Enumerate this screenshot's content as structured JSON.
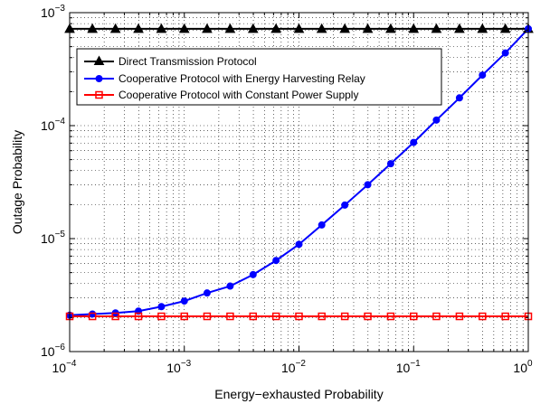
{
  "chart_data": {
    "type": "line",
    "xlabel": "Energy−exhausted Probability",
    "ylabel": "Outage Probability",
    "x_scale": "log",
    "y_scale": "log",
    "xlim": [
      0.0001,
      1
    ],
    "ylim": [
      1e-06,
      0.001
    ],
    "x_ticks": [
      {
        "base": "10",
        "exp": "−4"
      },
      {
        "base": "10",
        "exp": "−3"
      },
      {
        "base": "10",
        "exp": "−2"
      },
      {
        "base": "10",
        "exp": "−1"
      },
      {
        "base": "10",
        "exp": "0"
      }
    ],
    "y_ticks": [
      {
        "base": "10",
        "exp": "−6"
      },
      {
        "base": "10",
        "exp": "−5"
      },
      {
        "base": "10",
        "exp": "−4"
      },
      {
        "base": "10",
        "exp": "−3"
      }
    ],
    "grid": true,
    "legend_position": "top-left",
    "x": [
      0.0001,
      0.000158,
      0.000251,
      0.000398,
      0.000631,
      0.001,
      0.00158,
      0.00251,
      0.00398,
      0.00631,
      0.01,
      0.0158,
      0.0251,
      0.0398,
      0.0631,
      0.1,
      0.158,
      0.251,
      0.398,
      0.631,
      1.0
    ],
    "series": [
      {
        "name": "Direct Transmission Protocol",
        "color": "#000000",
        "marker": "triangle",
        "values": [
          0.00072,
          0.00072,
          0.00072,
          0.00072,
          0.00072,
          0.00072,
          0.00072,
          0.00072,
          0.00072,
          0.00072,
          0.00072,
          0.00072,
          0.00072,
          0.00072,
          0.00072,
          0.00072,
          0.00072,
          0.00072,
          0.00072,
          0.00072,
          0.00072
        ]
      },
      {
        "name": "Cooperative Protocol with Energy Harvesting Relay",
        "color": "#0000ff",
        "marker": "circle",
        "values": [
          2.1e-06,
          2.15e-06,
          2.2e-06,
          2.28e-06,
          2.5e-06,
          2.8e-06,
          3.3e-06,
          3.8e-06,
          4.8e-06,
          6.4e-06,
          8.9e-06,
          1.32e-05,
          1.98e-05,
          3e-05,
          4.6e-05,
          7.1e-05,
          0.000112,
          0.000176,
          0.00028,
          0.00044,
          0.00072
        ]
      },
      {
        "name": "Cooperative Protocol with Constant Power Supply",
        "color": "#ff0000",
        "marker": "square",
        "values": [
          2.05e-06,
          2.05e-06,
          2.05e-06,
          2.05e-06,
          2.05e-06,
          2.05e-06,
          2.05e-06,
          2.05e-06,
          2.05e-06,
          2.05e-06,
          2.05e-06,
          2.05e-06,
          2.05e-06,
          2.05e-06,
          2.05e-06,
          2.05e-06,
          2.05e-06,
          2.05e-06,
          2.05e-06,
          2.05e-06,
          2.05e-06
        ]
      }
    ]
  }
}
